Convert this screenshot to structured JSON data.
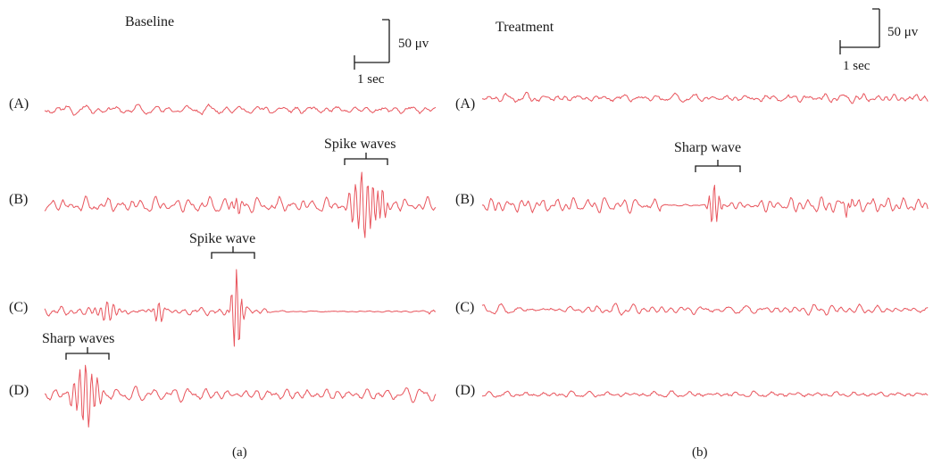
{
  "trace_color": "#e8545c",
  "panels": [
    {
      "id": "a",
      "title": "Baseline",
      "caption": "(a)",
      "scalebar": {
        "amplitude_label": "50 μv",
        "time_label": "1 sec"
      },
      "traces": [
        {
          "label": "(A)",
          "annotation": ""
        },
        {
          "label": "(B)",
          "annotation": "Spike waves"
        },
        {
          "label": "(C)",
          "annotation": "Spike wave"
        },
        {
          "label": "(D)",
          "annotation": "Sharp waves"
        }
      ]
    },
    {
      "id": "b",
      "title": "Treatment",
      "caption": "(b)",
      "scalebar": {
        "amplitude_label": "50 μv",
        "time_label": "1 sec"
      },
      "traces": [
        {
          "label": "(A)",
          "annotation": ""
        },
        {
          "label": "(B)",
          "annotation": "Sharp wave"
        },
        {
          "label": "(C)",
          "annotation": ""
        },
        {
          "label": "(D)",
          "annotation": ""
        }
      ]
    }
  ]
}
